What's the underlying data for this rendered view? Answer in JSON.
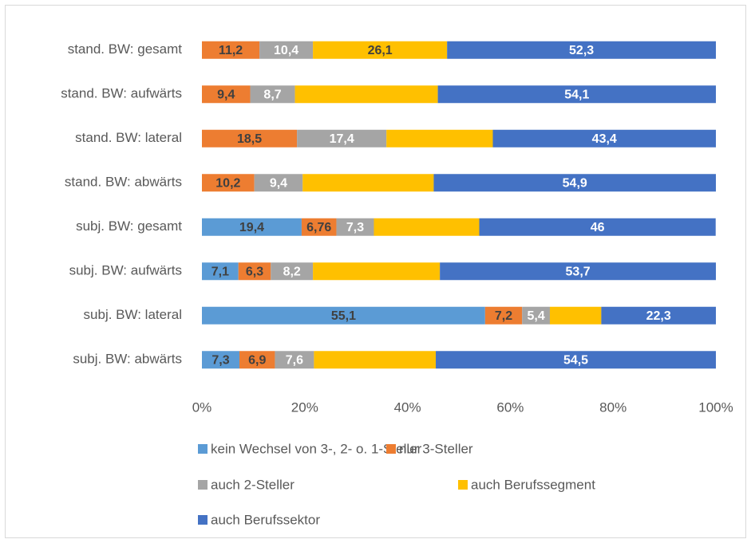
{
  "chart_data": {
    "type": "stacked-bar-horizontal",
    "categories": [
      "stand. BW: gesamt",
      "stand. BW: aufwärts",
      "stand. BW: lateral",
      "stand. BW: abwärts",
      "subj. BW: gesamt",
      "subj. BW: aufwärts",
      "subj. BW: lateral",
      "subj. BW: abwärts"
    ],
    "series": [
      {
        "name": "kein Wechsel von 3-, 2- o. 1-Steller",
        "color": "#5b9bd5",
        "values": [
          null,
          null,
          null,
          null,
          19.4,
          7.1,
          55.1,
          7.3
        ],
        "value_labels": [
          null,
          null,
          null,
          null,
          "19,4",
          "7,1",
          "55,1",
          "7,3"
        ]
      },
      {
        "name": "nur 3-Steller",
        "color": "#ed7d31",
        "values": [
          11.2,
          9.4,
          18.5,
          10.2,
          6.76,
          6.3,
          7.2,
          6.9
        ],
        "value_labels": [
          "11,2",
          "9,4",
          "18,5",
          "10,2",
          "6,76",
          "6,3",
          "7,2",
          "6,9"
        ]
      },
      {
        "name": "auch 2-Steller",
        "color": "#a5a5a5",
        "values": [
          10.4,
          8.7,
          17.4,
          9.4,
          7.3,
          8.2,
          5.4,
          7.6
        ],
        "value_labels": [
          "10,4",
          "8,7",
          "17,4",
          "9,4",
          "7,3",
          "8,2",
          "5,4",
          "7,6"
        ]
      },
      {
        "name": "auch Berufssegment",
        "color": "#ffc000",
        "values": [
          26.1,
          27.8,
          20.7,
          25.5,
          20.5,
          24.7,
          10.0,
          23.7
        ],
        "value_labels": [
          "26,1",
          null,
          null,
          null,
          null,
          null,
          null,
          null
        ]
      },
      {
        "name": "auch Berufssektor",
        "color": "#4472c4",
        "values": [
          52.3,
          54.1,
          43.4,
          54.9,
          46,
          53.7,
          22.3,
          54.5
        ],
        "value_labels": [
          "52,3",
          "54,1",
          "43,4",
          "54,9",
          "46",
          "53,7",
          "22,3",
          "54,5"
        ]
      }
    ],
    "xlim": [
      0,
      100
    ],
    "xticks": [
      {
        "value": 0,
        "label": "0%"
      },
      {
        "value": 20,
        "label": "20%"
      },
      {
        "value": 40,
        "label": "40%"
      },
      {
        "value": 60,
        "label": "60%"
      },
      {
        "value": 80,
        "label": "80%"
      },
      {
        "value": 100,
        "label": "100%"
      }
    ],
    "grid": false
  }
}
